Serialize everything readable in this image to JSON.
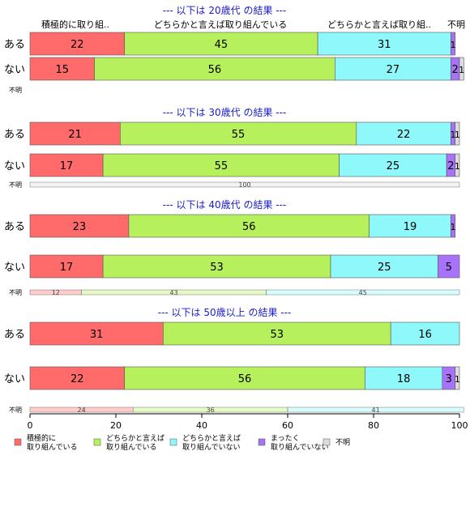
{
  "chart_data": {
    "type": "bar",
    "orientation": "horizontal",
    "stacked": true,
    "xlim": [
      0,
      100
    ],
    "x_ticks": [
      "0",
      "20",
      "40",
      "60",
      "80",
      "100"
    ],
    "title": "",
    "xlabel": "",
    "ylabel": "",
    "legend_position": "bottom",
    "series": [
      {
        "name": "積極的に\n取り組んでいる",
        "color": "#ff6b6b"
      },
      {
        "name": "どちらかと言えば\n取り組んでいる",
        "color": "#b6f05c"
      },
      {
        "name": "どちらかと言えば\n取り組んでいない",
        "color": "#8ff8fb"
      },
      {
        "name": "まったく\n取り組んでいない",
        "color": "#a873f9"
      },
      {
        "name": "不明",
        "color": "#dcdcdc"
      }
    ],
    "top_header_labels": [
      "積極的に取り組..",
      "どちらかと言えば取り組んでいる",
      "どちらかと言えば取り組..",
      "不明"
    ],
    "panels": [
      {
        "heading": "--- 以下は 20歳代 の結果 ---",
        "rows": [
          {
            "label": "ある",
            "values": [
              22,
              45,
              31,
              1,
              0
            ]
          },
          {
            "label": "ない",
            "values": [
              15,
              56,
              27,
              2,
              1
            ]
          }
        ],
        "fumei_label": "不明",
        "fumei_segments": []
      },
      {
        "heading": "--- 以下は 30歳代 の結果 ---",
        "rows": [
          {
            "label": "ある",
            "values": [
              21,
              55,
              22,
              1,
              1
            ]
          },
          {
            "label": "ない",
            "values": [
              17,
              55,
              25,
              2,
              1
            ]
          }
        ],
        "fumei_label": "不明",
        "fumei_segments": [
          {
            "value": 100,
            "label": "100",
            "series": 4
          }
        ]
      },
      {
        "heading": "--- 以下は 40歳代 の結果 ---",
        "rows": [
          {
            "label": "ある",
            "values": [
              23,
              56,
              19,
              1,
              0
            ]
          },
          {
            "label": "ない",
            "values": [
              17,
              53,
              25,
              5,
              0
            ]
          }
        ],
        "fumei_label": "不明",
        "fumei_segments": [
          {
            "value": 12,
            "label": "12",
            "series": 0
          },
          {
            "value": 43,
            "label": "43",
            "series": 1
          },
          {
            "value": 45,
            "label": "45",
            "series": 2
          }
        ]
      },
      {
        "heading": "--- 以下は 50歳以上 の結果 ---",
        "rows": [
          {
            "label": "ある",
            "values": [
              31,
              53,
              16,
              0,
              0
            ]
          },
          {
            "label": "ない",
            "values": [
              22,
              56,
              18,
              3,
              1
            ]
          }
        ],
        "fumei_label": "不明",
        "fumei_segments": [
          {
            "value": 24,
            "label": "24",
            "series": 0
          },
          {
            "value": 36,
            "label": "36",
            "series": 1
          },
          {
            "value": 41,
            "label": "41",
            "series": 2
          }
        ]
      }
    ]
  }
}
